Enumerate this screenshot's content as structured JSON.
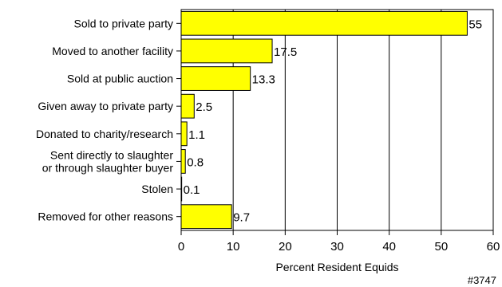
{
  "chart_data": {
    "type": "bar",
    "orientation": "horizontal",
    "categories": [
      [
        "Sold to private party"
      ],
      [
        "Moved to another facility"
      ],
      [
        "Sold at public auction"
      ],
      [
        "Given away to private party"
      ],
      [
        "Donated to charity/research"
      ],
      [
        "Sent directly to slaughter",
        "or through slaughter buyer"
      ],
      [
        "Stolen"
      ],
      [
        "Removed for other reasons"
      ]
    ],
    "values": [
      55,
      17.5,
      13.3,
      2.5,
      1.1,
      0.8,
      0.1,
      9.7
    ],
    "value_labels": [
      "55",
      "17.5",
      "13.3",
      "2.5",
      "1.1",
      "0.8",
      "0.1",
      "9.7"
    ],
    "xlabel": "Percent Resident Equids",
    "xlim": [
      0,
      60
    ],
    "xticks": [
      0,
      10,
      20,
      30,
      40,
      50,
      60
    ],
    "vertical_gridlines": true,
    "bar_color": "#ffff00",
    "bar_outline_color": "#000000"
  },
  "chart_id": "#3747"
}
